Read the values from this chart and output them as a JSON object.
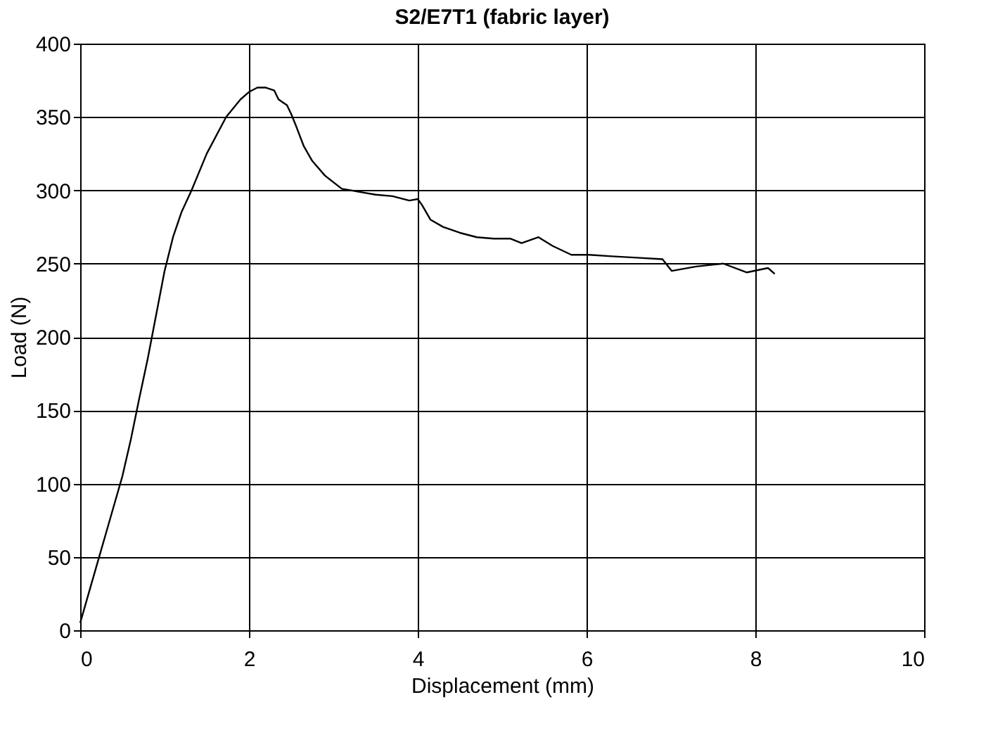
{
  "chart_data": {
    "type": "line",
    "title": "S2/E7T1 (fabric layer)",
    "xlabel": "Displacement  (mm)",
    "ylabel": "Load (N)",
    "xlim": [
      0,
      10
    ],
    "ylim": [
      0,
      400
    ],
    "xticks": [
      0,
      2,
      4,
      6,
      8,
      10
    ],
    "yticks": [
      0,
      50,
      100,
      150,
      200,
      250,
      300,
      350,
      400
    ],
    "grid": true,
    "marker": "none",
    "line_style": "solid",
    "series": [
      {
        "color": "#000000",
        "x": [
          0,
          0.1,
          0.2,
          0.3,
          0.4,
          0.5,
          0.6,
          0.7,
          0.8,
          0.9,
          1.0,
          1.1,
          1.2,
          1.32,
          1.5,
          1.73,
          1.9,
          2.0,
          2.1,
          2.2,
          2.3,
          2.35,
          2.4,
          2.45,
          2.5,
          2.55,
          2.65,
          2.75,
          2.9,
          3.1,
          3.3,
          3.5,
          3.7,
          3.9,
          4.0,
          4.05,
          4.15,
          4.3,
          4.5,
          4.7,
          4.9,
          5.1,
          5.23,
          5.43,
          5.6,
          5.82,
          6.03,
          6.3,
          6.6,
          6.9,
          7.01,
          7.3,
          7.62,
          7.9,
          8.15,
          8.23
        ],
        "values": [
          5,
          25,
          45,
          65,
          85,
          105,
          130,
          158,
          185,
          215,
          245,
          268,
          285,
          300,
          325,
          350,
          362,
          367,
          370,
          370,
          368,
          362,
          360,
          358,
          352,
          345,
          330,
          320,
          310,
          301,
          299,
          297,
          296,
          293,
          294,
          290,
          280,
          275,
          271,
          268,
          267,
          267,
          264,
          268,
          262,
          256,
          256,
          255,
          254,
          253,
          245,
          248,
          250,
          244,
          247,
          243
        ]
      }
    ]
  }
}
